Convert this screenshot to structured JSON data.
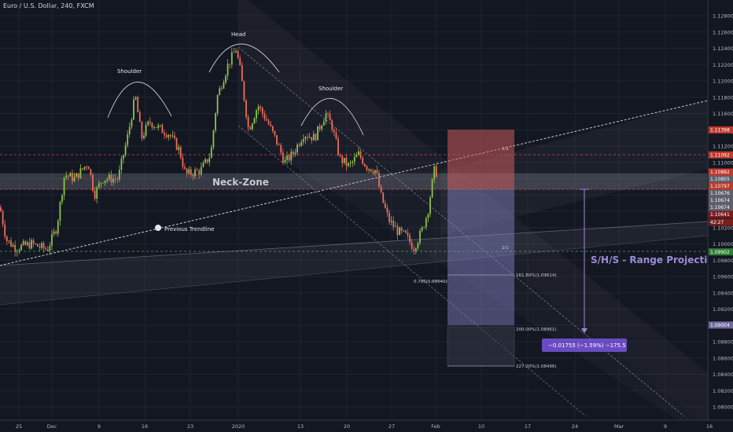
{
  "symbol": {
    "title": "Euro / U.S. Dollar, 240, FXCM"
  },
  "colors": {
    "background": "#131722",
    "up": "#8bc34a",
    "down": "#ef6c5a",
    "neck_zone": "#b2b5be",
    "red_box": "#c85b5b",
    "purple_box": "#8a86c9",
    "badge": "#6a4cc2",
    "dashed_red": "#d04848",
    "dashed_green": "#4caf50",
    "tag_red": "#c0392b",
    "tag_dark_red": "#7a1d1d",
    "tag_green": "#2e7d32",
    "tag_grey": "#5d606b",
    "tag_purple": "#6e6a9a"
  },
  "annotations": {
    "head": "Head",
    "shoulder_left": "Shoulder",
    "shoulder_right": "Shoulder",
    "neck_zone": "Neck-Zone",
    "previous_trendline": "Previous Trendline",
    "range_projection": "S/H/S - Range Projection",
    "fib_786": "0.786(1.09541)",
    "fib_1618": "161.80%(1.09614)",
    "fib_200": "200.00%(1.08961)",
    "fib_2272": "227.20%(1.08496)",
    "ratio_1": "1/1",
    "ratio_2": "2/1",
    "measure": "−0.01755 (−1.59%) −175.5"
  },
  "price_tags": [
    {
      "label": "1.11398",
      "value": 1.11398,
      "color": "#c0392b"
    },
    {
      "label": "1.11092",
      "value": 1.11092,
      "color": "#c0392b"
    },
    {
      "label": "1.10882",
      "value": 1.10882,
      "color": "#c0392b"
    },
    {
      "label": "1.10855",
      "value": 1.10855,
      "color": "#5d606b"
    },
    {
      "label": "1.10797",
      "value": 1.10797,
      "color": "#c0392b"
    },
    {
      "label": "1.10676",
      "value": 1.10676,
      "color": "#5d606b"
    },
    {
      "label": "1.10674",
      "value": 1.10674,
      "color": "#5d606b"
    },
    {
      "label": "1.10674",
      "value": 1.10674,
      "color": "#5d606b"
    },
    {
      "label": "1.10641",
      "value": 1.10641,
      "color": "#7a1d1d"
    },
    {
      "label": "42:27",
      "value": null,
      "color": "#7a1d1d"
    },
    {
      "label": "1.09902",
      "value": 1.09902,
      "color": "#2e7d32"
    },
    {
      "label": "1.09004",
      "value": 1.09004,
      "color": "#6e6a9a"
    }
  ],
  "chart_data": {
    "type": "candlestick",
    "title": "Euro / U.S. Dollar, 240, FXCM",
    "ylim": [
      1.079,
      1.1285
    ],
    "y_ticks": [
      "1.12800",
      "1.12600",
      "1.12400",
      "1.12200",
      "1.12000",
      "1.11800",
      "1.11600",
      "1.11400",
      "1.11200",
      "1.11000",
      "1.10800",
      "1.10600",
      "1.10400",
      "1.10200",
      "1.10000",
      "1.09800",
      "1.09600",
      "1.09400",
      "1.09200",
      "1.09000",
      "1.08800",
      "1.08600",
      "1.08400",
      "1.08200",
      "1.08000"
    ],
    "x_ticks": [
      "25",
      "Dec",
      "9",
      "16",
      "23",
      "2020",
      "13",
      "20",
      "27",
      "Feb",
      "10",
      "17",
      "24",
      "Mar",
      "9",
      "16"
    ],
    "approx_close_path": [
      {
        "x": "25",
        "price": 1.102
      },
      {
        "x": "Dec",
        "price": 1.104
      },
      {
        "x": "9",
        "price": 1.107
      },
      {
        "x": "16",
        "price": 1.116
      },
      {
        "x": "23",
        "price": 1.1085
      },
      {
        "x": "2020",
        "price": 1.1235
      },
      {
        "x": "13",
        "price": 1.112
      },
      {
        "x": "20",
        "price": 1.11
      },
      {
        "x": "27",
        "price": 1.104
      },
      {
        "x": "Feb",
        "price": 1.109
      }
    ],
    "head_price": 1.1239,
    "left_shoulder_price": 1.1181,
    "right_shoulder_price": 1.116,
    "last_low_price": 1.0993,
    "neck_zone": [
      1.10797,
      1.10882
    ],
    "target_price": 1.09004,
    "measure_change": -0.01755
  }
}
